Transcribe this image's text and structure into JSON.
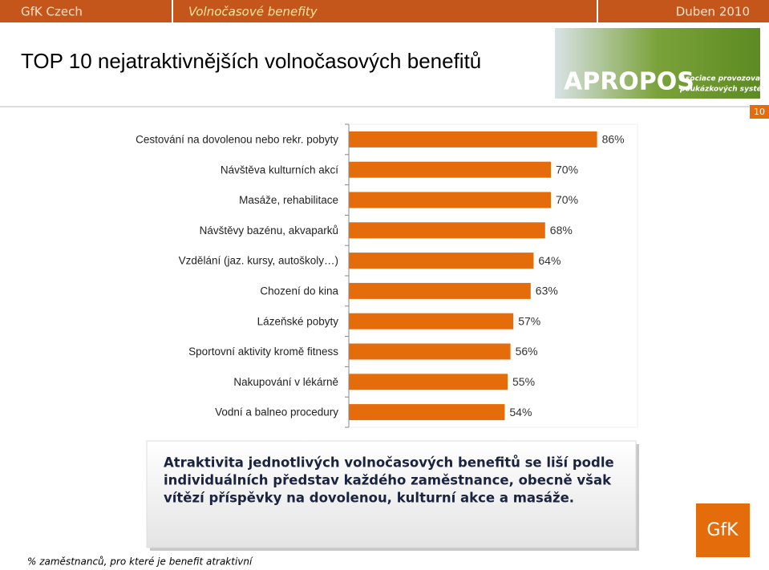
{
  "header": {
    "company": "GfK Czech",
    "topic": "Volnočasové benefity",
    "date": "Duben 2010"
  },
  "title": "TOP 10 nejatraktivnějších volnočasových benefitů",
  "logo": {
    "name": "APROPOS",
    "tagline_1": "Asociace provozovatelů",
    "tagline_2": "poukázkových systémů"
  },
  "page_number": "10",
  "chart_data": {
    "type": "bar",
    "orientation": "horizontal",
    "categories": [
      "Cestování na dovolenou nebo  rekr. pobyty",
      "Návštěva kulturních akcí",
      "Masáže, rehabilitace",
      "Návštěvy bazénu, akvaparků",
      "Vzdělání (jaz. kursy, autoškoly…)",
      "Chození do kina",
      "Lázeňské pobyty",
      "Sportovní aktivity kromě fitness",
      "Nakupování v lékárně",
      "Vodní a balneo procedury"
    ],
    "values": [
      86,
      70,
      70,
      68,
      64,
      63,
      57,
      56,
      55,
      54
    ],
    "value_labels": [
      "86%",
      "70%",
      "70%",
      "68%",
      "64%",
      "63%",
      "57%",
      "56%",
      "55%",
      "54%"
    ],
    "color": "#e46c0a",
    "xlim": [
      0,
      100
    ]
  },
  "callout": {
    "lines": [
      "Atraktivita jednotlivých volnočasových benefitů se liší podle",
      "individuálních představ každého zaměstnance, obecně však",
      "vítězí příspěvky na dovolenou, kulturní akce a masáže."
    ]
  },
  "footnote": "% zaměstnanců, pro které je benefit atraktivní",
  "brand": "GfK"
}
